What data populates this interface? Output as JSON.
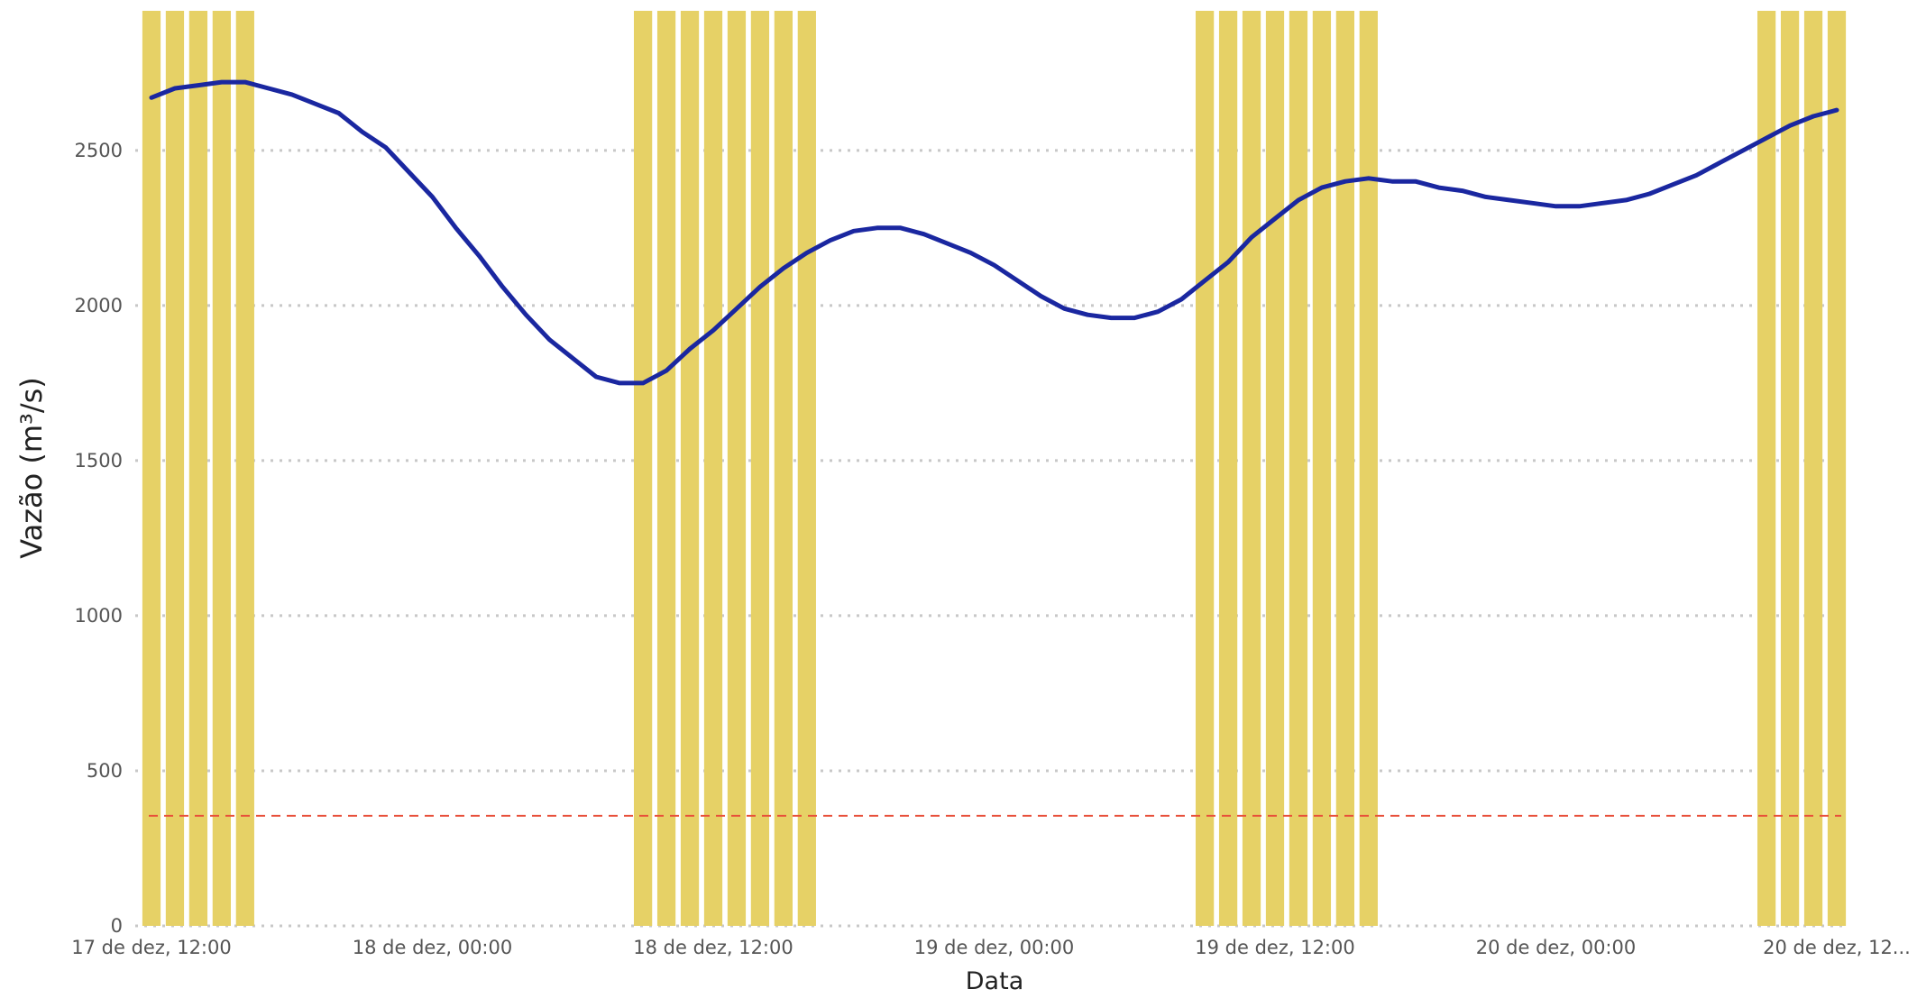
{
  "chart_data": {
    "type": "line",
    "xlabel": "Data",
    "ylabel": "Vazão (m³/s)",
    "ylim": [
      0,
      2950
    ],
    "y_ticks": [
      0,
      500,
      1000,
      1500,
      2000,
      2500
    ],
    "y_tick_labels": [
      "0",
      "500",
      "1000",
      "1500",
      "2000",
      "2500"
    ],
    "x_unit": "hours since 17 de dez, 12:00",
    "xlim": [
      0,
      72
    ],
    "x_ticks": [
      {
        "x": 0,
        "label": "17 de dez, 12:00"
      },
      {
        "x": 12,
        "label": "18 de dez, 00:00"
      },
      {
        "x": 24,
        "label": "18 de dez, 12:00"
      },
      {
        "x": 36,
        "label": "19 de dez, 00:00"
      },
      {
        "x": 48,
        "label": "19 de dez, 12:00"
      },
      {
        "x": 60,
        "label": "20 de dez, 00:00"
      },
      {
        "x": 72,
        "label": "20 de dez, 12..."
      }
    ],
    "grid": "horizontal-dotted",
    "colors": {
      "series": "#1a27a0",
      "bars": "#e6d166",
      "reference_line": "#e8503a",
      "grid": "#c8c8c8"
    },
    "bars": [
      {
        "x": 0,
        "value": 2950
      },
      {
        "x": 1,
        "value": 2950
      },
      {
        "x": 2,
        "value": 2950
      },
      {
        "x": 3,
        "value": 2950
      },
      {
        "x": 4,
        "value": 2950
      },
      {
        "x": 21,
        "value": 2950
      },
      {
        "x": 22,
        "value": 2950
      },
      {
        "x": 23,
        "value": 2950
      },
      {
        "x": 24,
        "value": 2950
      },
      {
        "x": 25,
        "value": 2950
      },
      {
        "x": 26,
        "value": 2950
      },
      {
        "x": 27,
        "value": 2950
      },
      {
        "x": 28,
        "value": 2950
      },
      {
        "x": 45,
        "value": 2950
      },
      {
        "x": 46,
        "value": 2950
      },
      {
        "x": 47,
        "value": 2950
      },
      {
        "x": 48,
        "value": 2950
      },
      {
        "x": 49,
        "value": 2950
      },
      {
        "x": 50,
        "value": 2950
      },
      {
        "x": 51,
        "value": 2950
      },
      {
        "x": 52,
        "value": 2950
      },
      {
        "x": 69,
        "value": 2950
      },
      {
        "x": 70,
        "value": 2950
      },
      {
        "x": 71,
        "value": 2950
      },
      {
        "x": 72,
        "value": 2950
      }
    ],
    "reference_line": {
      "value": 355,
      "style": "dashed"
    },
    "series": [
      {
        "x": [
          0,
          1,
          2,
          3,
          4,
          5,
          6,
          7,
          8,
          9,
          10,
          11,
          12,
          13,
          14,
          15,
          16,
          17,
          18,
          19,
          20,
          21,
          22,
          23,
          24,
          25,
          26,
          27,
          28,
          29,
          30,
          31,
          32,
          33,
          34,
          35,
          36,
          37,
          38,
          39,
          40,
          41,
          42,
          43,
          44,
          45,
          46,
          47,
          48,
          49,
          50,
          51,
          52,
          53,
          54,
          55,
          56,
          57,
          58,
          59,
          60,
          61,
          62,
          63,
          64,
          65,
          66,
          67,
          68,
          69,
          70,
          71,
          72
        ],
        "values": [
          2670,
          2700,
          2710,
          2720,
          2720,
          2700,
          2680,
          2650,
          2620,
          2560,
          2510,
          2430,
          2350,
          2250,
          2160,
          2060,
          1970,
          1890,
          1830,
          1770,
          1750,
          1750,
          1790,
          1860,
          1920,
          1990,
          2060,
          2120,
          2170,
          2210,
          2240,
          2250,
          2250,
          2230,
          2200,
          2170,
          2130,
          2080,
          2030,
          1990,
          1970,
          1960,
          1960,
          1980,
          2020,
          2080,
          2140,
          2220,
          2280,
          2340,
          2380,
          2400,
          2410,
          2400,
          2400,
          2380,
          2370,
          2350,
          2340,
          2330,
          2320,
          2320,
          2330,
          2340,
          2360,
          2390,
          2420,
          2460,
          2500,
          2540,
          2580,
          2610,
          2630
        ]
      }
    ]
  }
}
